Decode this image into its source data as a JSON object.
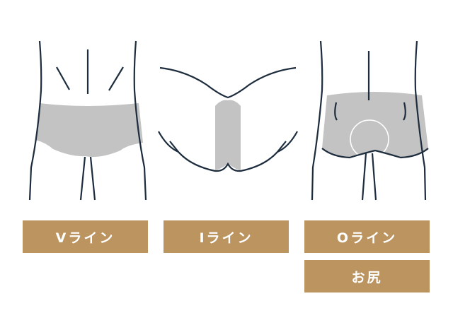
{
  "colors": {
    "label_bg": "#bb945f",
    "label_text": "#ffffff",
    "outline": "#1d2d3d",
    "shade": "#c3c3c3",
    "background": "#ffffff"
  },
  "labels": {
    "v_line": "Vライン",
    "i_line": "Iライン",
    "o_line": "Oライン",
    "buttocks": "お尻"
  },
  "icons": {
    "front": "front-hips-illustration",
    "crotch": "crotch-illustration",
    "back": "back-hips-illustration"
  }
}
